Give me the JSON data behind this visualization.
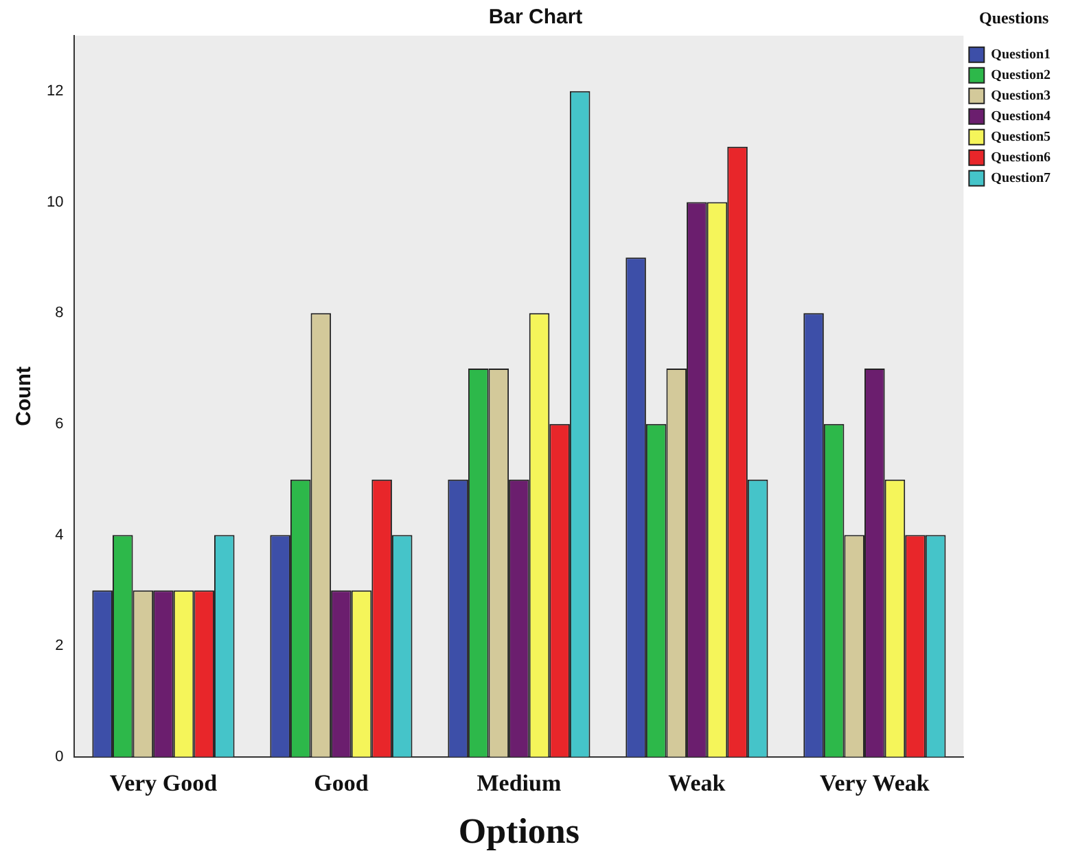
{
  "chart_data": {
    "type": "bar",
    "title": "Bar Chart",
    "xlabel": "Options",
    "ylabel": "Count",
    "legend_title": "Questions",
    "legend": "top right",
    "grid": false,
    "categories": [
      "Very Good",
      "Good",
      "Medium",
      "Weak",
      "Very Weak"
    ],
    "ylim": [
      0,
      13
    ],
    "yticks": [
      0,
      2,
      4,
      6,
      8,
      10,
      12
    ],
    "series": [
      {
        "name": "Question1",
        "color": "#3d4fa8",
        "values": [
          3,
          4,
          5,
          9,
          8
        ]
      },
      {
        "name": "Question2",
        "color": "#2db84a",
        "values": [
          4,
          5,
          7,
          6,
          6
        ]
      },
      {
        "name": "Question3",
        "color": "#d3c99a",
        "values": [
          3,
          8,
          7,
          7,
          4
        ]
      },
      {
        "name": "Question4",
        "color": "#6b1e6e",
        "values": [
          3,
          3,
          5,
          10,
          7
        ]
      },
      {
        "name": "Question5",
        "color": "#f5f55a",
        "values": [
          3,
          3,
          8,
          10,
          5
        ]
      },
      {
        "name": "Question6",
        "color": "#e8262a",
        "values": [
          3,
          5,
          6,
          11,
          4
        ]
      },
      {
        "name": "Question7",
        "color": "#45c4c9",
        "values": [
          4,
          4,
          12,
          5,
          4
        ]
      }
    ]
  }
}
